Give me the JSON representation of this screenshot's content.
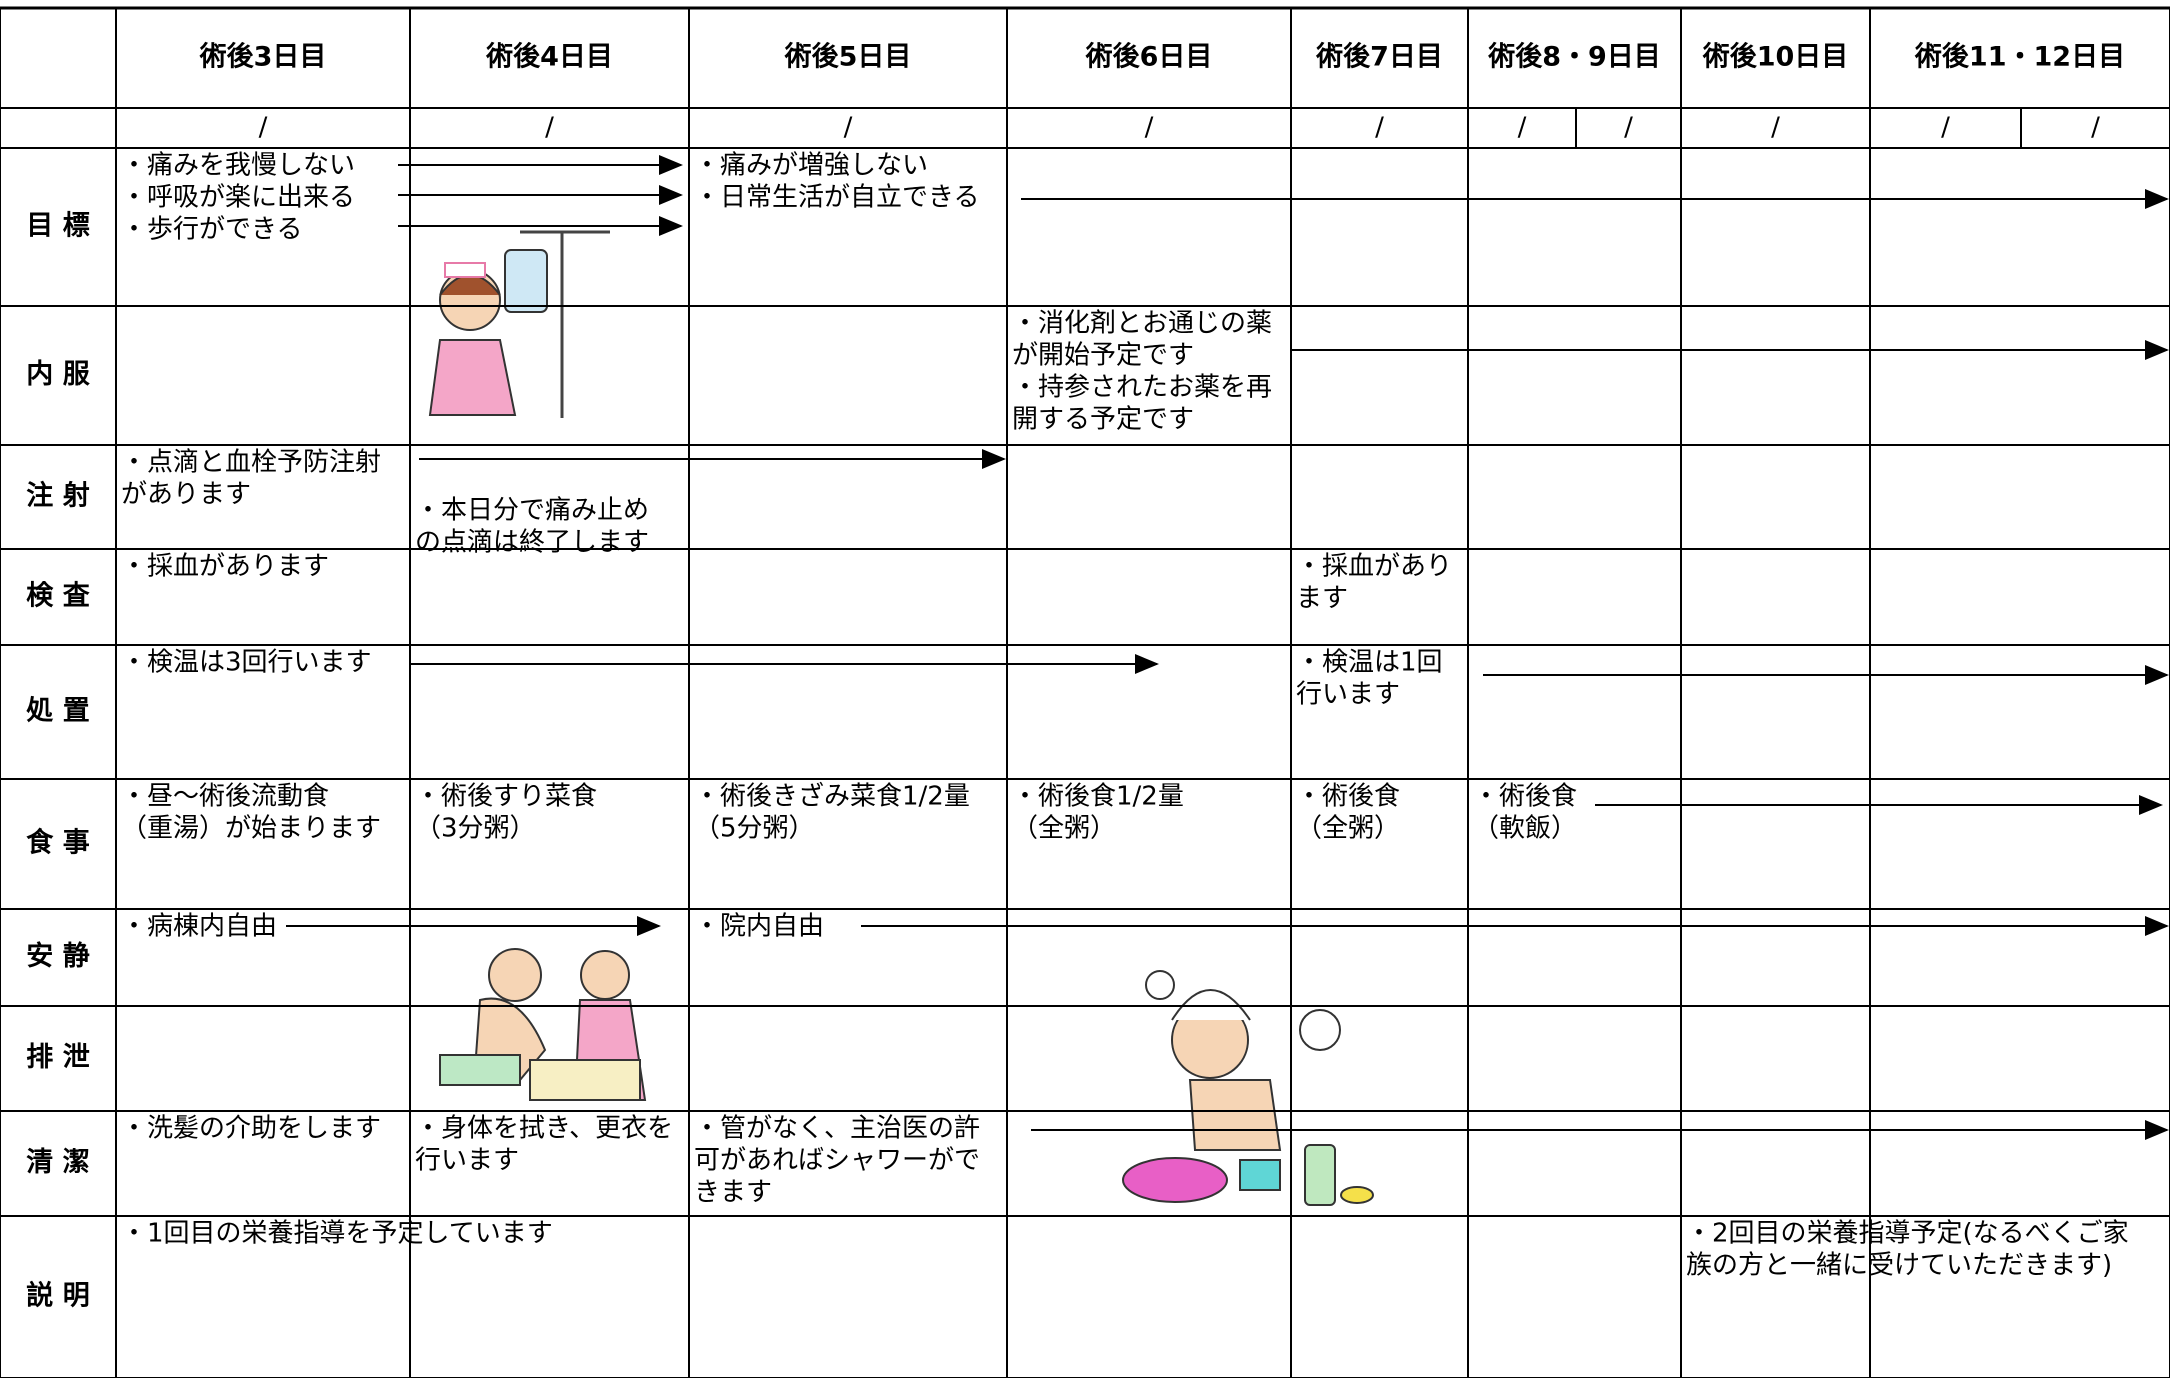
{
  "table": {
    "days": [
      "術後3日目",
      "術後4日目",
      "術後5日目",
      "術後6日目",
      "術後7日目",
      "術後8・9日目",
      "術後10日目",
      "術後11・12日目"
    ],
    "dates": [
      "/",
      "/",
      "/",
      "/",
      "/",
      "/",
      "/",
      "/",
      "/",
      "/"
    ],
    "rows": [
      {
        "label": "目 標",
        "cells": [
          [
            "・痛みを我慢しない",
            "・呼吸が楽に出来る",
            "・歩行ができる"
          ],
          null,
          [
            "・痛みが増強しない",
            "・日常生活が自立できる"
          ],
          null,
          null,
          null,
          null,
          null
        ]
      },
      {
        "label": "内 服",
        "cells": [
          null,
          null,
          null,
          [
            "・消化剤とお通じの薬",
            "が開始予定です",
            "・持参されたお薬を再",
            "開する予定です"
          ],
          null,
          null,
          null,
          null
        ]
      },
      {
        "label": "注 射",
        "cells": [
          [
            "・点滴と血栓予防注射",
            "があります"
          ],
          [
            "・本日分で痛み止め",
            "の点滴は終了します"
          ],
          null,
          null,
          null,
          null,
          null,
          null
        ]
      },
      {
        "label": "検 査",
        "cells": [
          [
            "・採血があります"
          ],
          null,
          null,
          null,
          [
            "・採血があり",
            "ます"
          ],
          null,
          null,
          null
        ]
      },
      {
        "label": "処 置",
        "cells": [
          [
            "・検温は3回行います"
          ],
          null,
          null,
          null,
          [
            "・検温は1回",
            "行います"
          ],
          null,
          null,
          null
        ]
      },
      {
        "label": "食 事",
        "cells": [
          [
            "・昼～術後流動食",
            "（重湯）が始まります"
          ],
          [
            "・術後すり菜食",
            "（3分粥）"
          ],
          [
            "・術後きざみ菜食1/2量",
            "（5分粥）"
          ],
          [
            "・術後食1/2量",
            "（全粥）"
          ],
          [
            "・術後食",
            "（全粥）"
          ],
          [
            "・術後食",
            "（軟飯）"
          ],
          null,
          null
        ]
      },
      {
        "label": "安 静",
        "cells": [
          [
            "・病棟内自由"
          ],
          null,
          [
            "・院内自由"
          ],
          null,
          null,
          null,
          null,
          null
        ]
      },
      {
        "label": "排 泄",
        "cells": [
          null,
          null,
          null,
          null,
          null,
          null,
          null,
          null
        ]
      },
      {
        "label": "清 潔",
        "cells": [
          [
            "・洗髪の介助をします"
          ],
          [
            "・身体を拭き、更衣を",
            "行います"
          ],
          [
            "・管がなく、主治医の許",
            "可があればシャワーがで",
            "きます"
          ],
          null,
          null,
          null,
          null,
          null
        ]
      },
      {
        "label": "説 明",
        "cells": [
          [
            "・1回目の栄養指導を予定しています"
          ],
          null,
          null,
          null,
          null,
          null,
          [
            "・2回目の栄養指導予定(なるべくご家",
            "族の方と一緒に受けていただきます)"
          ],
          null
        ]
      }
    ]
  }
}
